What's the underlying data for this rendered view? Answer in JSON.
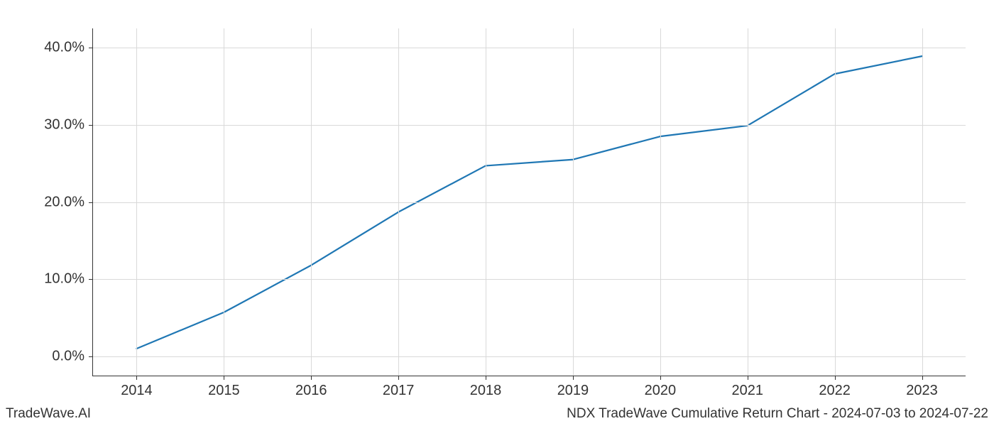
{
  "chart": {
    "type": "line",
    "x_categories": [
      "2014",
      "2015",
      "2016",
      "2017",
      "2018",
      "2019",
      "2020",
      "2021",
      "2022",
      "2023"
    ],
    "x_values_numeric": [
      2014,
      2015,
      2016,
      2017,
      2018,
      2019,
      2020,
      2021,
      2022,
      2023
    ],
    "y_values_pct": [
      1.0,
      5.7,
      11.8,
      18.7,
      24.7,
      25.5,
      28.5,
      29.9,
      36.6,
      38.9
    ],
    "y_tick_values": [
      0,
      10,
      20,
      30,
      40
    ],
    "y_tick_labels": [
      "0.0%",
      "10.0%",
      "20.0%",
      "30.0%",
      "40.0%"
    ],
    "x_tick_values": [
      2014,
      2015,
      2016,
      2017,
      2018,
      2019,
      2020,
      2021,
      2022,
      2023
    ],
    "x_tick_labels": [
      "2014",
      "2015",
      "2016",
      "2017",
      "2018",
      "2019",
      "2020",
      "2021",
      "2022",
      "2023"
    ],
    "xlim": [
      2013.5,
      2023.5
    ],
    "ylim": [
      -2.5,
      42.5
    ],
    "line_color": "#1f77b4",
    "line_width": 2.2,
    "background_color": "#ffffff",
    "grid_color": "#d9d9d9",
    "axis_color": "#333333",
    "tick_fontsize": 20,
    "footer_fontsize": 19
  },
  "footer": {
    "left": "TradeWave.AI",
    "right": "NDX TradeWave Cumulative Return Chart - 2024-07-03 to 2024-07-22"
  }
}
